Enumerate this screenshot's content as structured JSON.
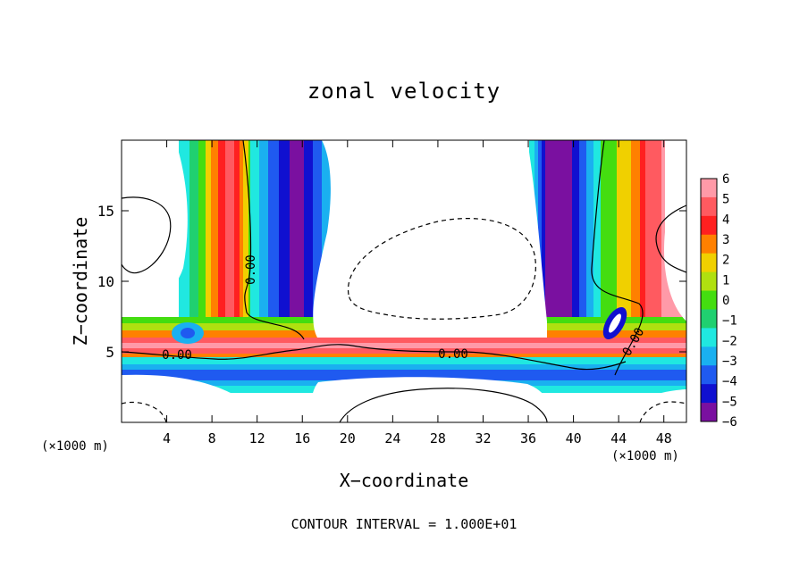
{
  "chart_data": {
    "type": "heatmap",
    "title": "zonal velocity",
    "xlabel": "X−coordinate",
    "ylabel": "Z−coordinate",
    "x_unit": "(×1000 m)",
    "xlim": [
      0,
      50
    ],
    "ylim": [
      0,
      20
    ],
    "x_ticks": [
      "4",
      "8",
      "12",
      "16",
      "20",
      "24",
      "28",
      "32",
      "36",
      "40",
      "44",
      "48"
    ],
    "y_ticks": [
      "5",
      "10",
      "15"
    ],
    "colorbar": {
      "ticks": [
        "6",
        "5",
        "4",
        "3",
        "2",
        "1",
        "0",
        "−1",
        "−2",
        "−3",
        "−4",
        "−5",
        "−6"
      ],
      "range": [
        -6,
        6
      ],
      "colors": [
        "#7a10a0",
        "#1010d0",
        "#1f5af0",
        "#1ab0f0",
        "#20e8e0",
        "#20d070",
        "#44dd10",
        "#b0e010",
        "#f0d000",
        "#ff8000",
        "#ff2020",
        "#ff5a60",
        "#ff9aa8"
      ]
    },
    "contour_labels": [
      "0.00",
      "0.00",
      "0.00",
      "0.00"
    ],
    "contour_interval": "CONTOUR INTERVAL = 1.000E+01",
    "grid": false,
    "legend": "colorbar-right"
  }
}
